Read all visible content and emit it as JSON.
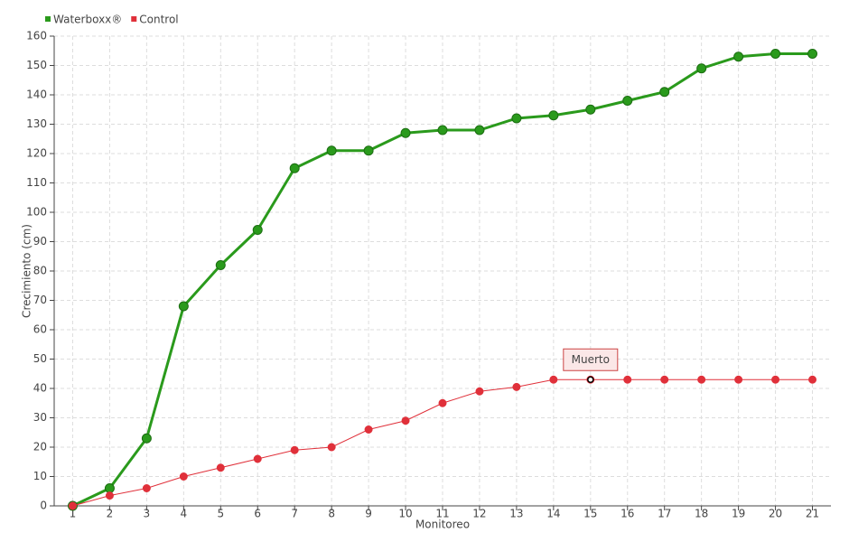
{
  "chart_data": {
    "type": "line",
    "x_label": "Monitoreo",
    "y_label": "Crecimiento (cm)",
    "categories": [
      "1",
      "2",
      "3",
      "4",
      "5",
      "6",
      "7",
      "8",
      "9",
      "10",
      "11",
      "12",
      "13",
      "14",
      "15",
      "16",
      "17",
      "18",
      "19",
      "20",
      "21"
    ],
    "series": [
      {
        "name": "Waterboxx®",
        "color": "#2a9a1c",
        "values": [
          0,
          6,
          23,
          68,
          82,
          94,
          115,
          121,
          121,
          127,
          128,
          128,
          132,
          133,
          135,
          138,
          141,
          149,
          153,
          154,
          154
        ]
      },
      {
        "name": "Control",
        "color": "#e0303a",
        "values": [
          0,
          3.5,
          6,
          10,
          13,
          16,
          19,
          20,
          26,
          29,
          35,
          39,
          40.5,
          43,
          43,
          43,
          43,
          43,
          43,
          43,
          43
        ],
        "annotations": [
          null,
          null,
          null,
          null,
          null,
          null,
          null,
          null,
          null,
          null,
          null,
          null,
          null,
          null,
          "Muerto",
          null,
          null,
          null,
          null,
          null,
          null
        ]
      }
    ],
    "ylim": [
      0,
      160
    ],
    "yticks": [
      0,
      10,
      20,
      30,
      40,
      50,
      60,
      70,
      80,
      90,
      100,
      110,
      120,
      130,
      140,
      150,
      160
    ],
    "grid": true,
    "legend": "top-left"
  }
}
